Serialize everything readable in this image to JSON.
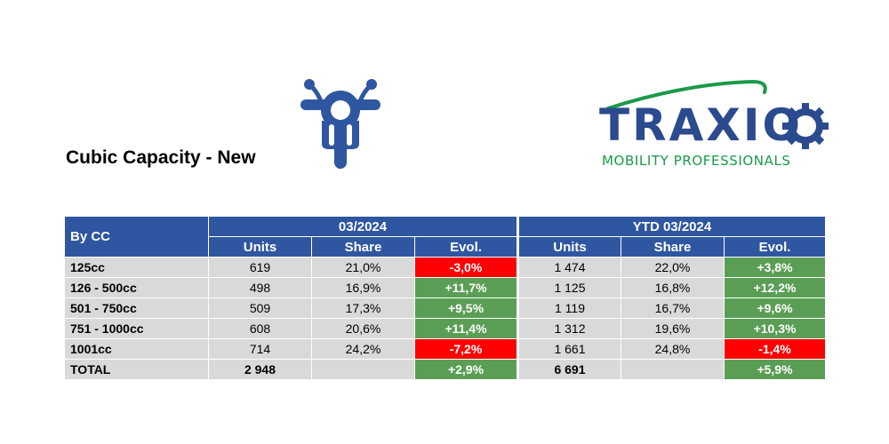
{
  "title": "Cubic Capacity - New",
  "logo": {
    "word": "TRAXIO",
    "subtitle": "MOBILITY PROFESSIONALS"
  },
  "colors": {
    "header": "#2f56a0",
    "negative": "#ff0000",
    "positive": "#5a9e55",
    "row": "#d9d9d9",
    "logo_blue": "#2b4b8e",
    "logo_green": "#1a9a48"
  },
  "icons": {
    "motorcycle": "motorcycle-icon"
  },
  "table": {
    "row_header": "By CC",
    "group1": "03/2024",
    "group2": "YTD 03/2024",
    "columns": [
      "Units",
      "Share",
      "Evol.",
      "Units",
      "Share",
      "Evol."
    ],
    "rows": [
      {
        "label": "125cc",
        "units": "619",
        "share": "21,0%",
        "evol": "-3,0%",
        "ytd_units": "1 474",
        "ytd_share": "22,0%",
        "ytd_evol": "+3,8%"
      },
      {
        "label": "126 - 500cc",
        "units": "498",
        "share": "16,9%",
        "evol": "+11,7%",
        "ytd_units": "1 125",
        "ytd_share": "16,8%",
        "ytd_evol": "+12,2%"
      },
      {
        "label": "501 - 750cc",
        "units": "509",
        "share": "17,3%",
        "evol": "+9,5%",
        "ytd_units": "1 119",
        "ytd_share": "16,7%",
        "ytd_evol": "+9,6%"
      },
      {
        "label": "751 - 1000cc",
        "units": "608",
        "share": "20,6%",
        "evol": "+11,4%",
        "ytd_units": "1 312",
        "ytd_share": "19,6%",
        "ytd_evol": "+10,3%"
      },
      {
        "label": "1001cc",
        "units": "714",
        "share": "24,2%",
        "evol": "-7,2%",
        "ytd_units": "1 661",
        "ytd_share": "24,8%",
        "ytd_evol": "-1,4%"
      },
      {
        "label": "TOTAL",
        "units": "2 948",
        "share": "",
        "evol": "+2,9%",
        "ytd_units": "6 691",
        "ytd_share": "",
        "ytd_evol": "+5,9%"
      }
    ]
  }
}
